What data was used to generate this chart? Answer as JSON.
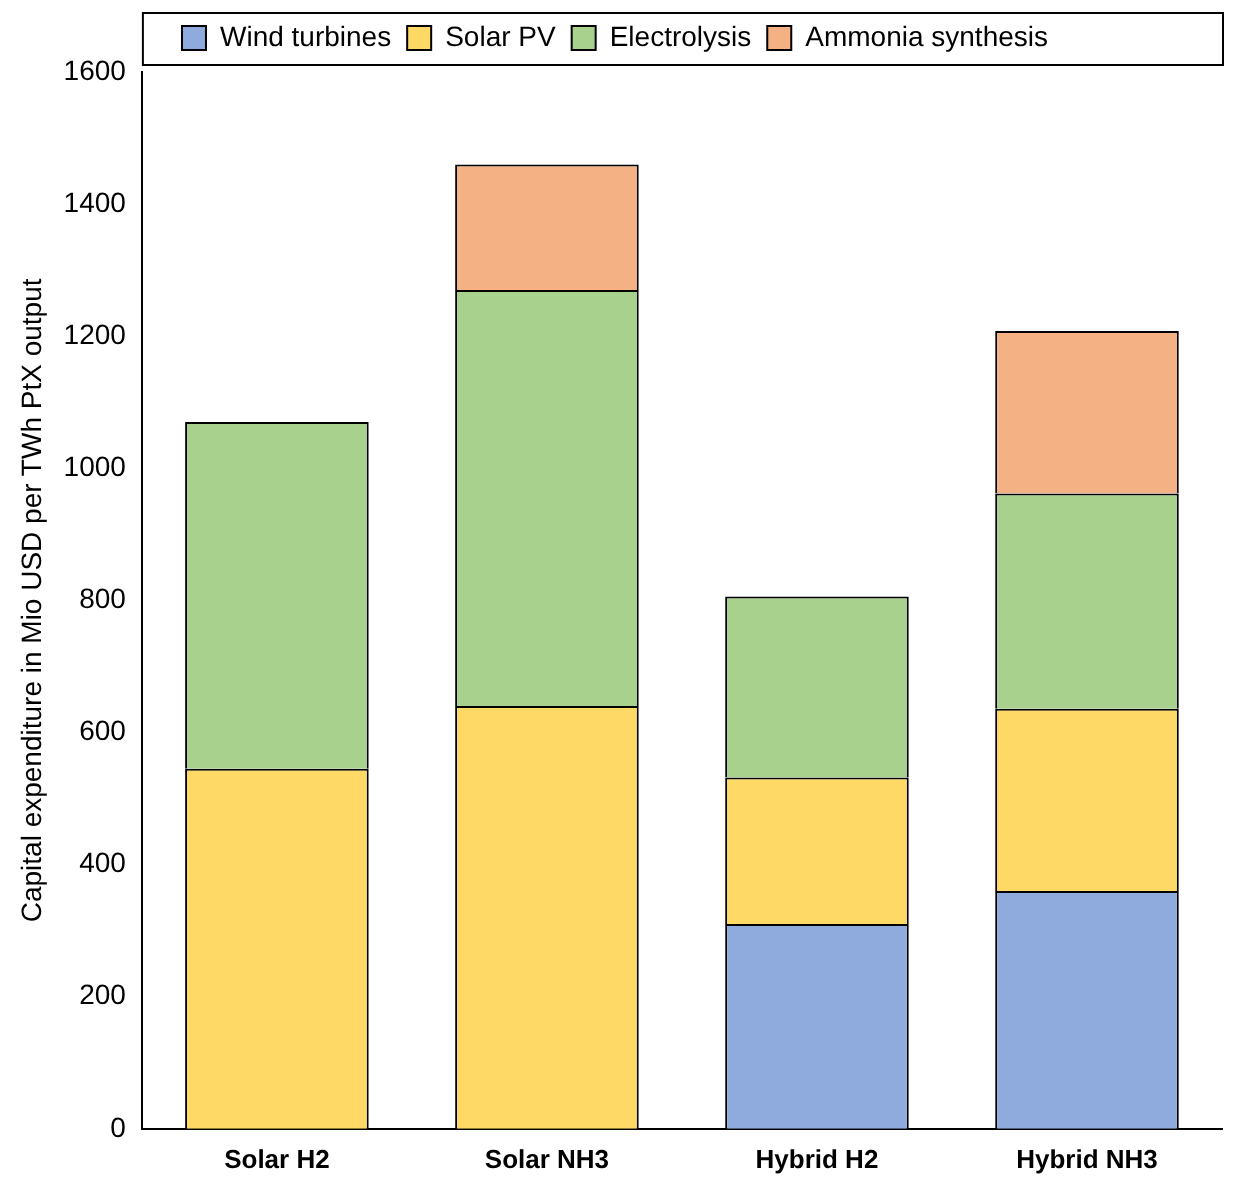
{
  "chart_data": {
    "type": "bar",
    "stacked": true,
    "ylabel": "Capital expenditure in Mio USD per TWh PtX output",
    "categories": [
      "Solar H2",
      "Solar NH3",
      "Hybrid H2",
      "Hybrid NH3"
    ],
    "series": [
      {
        "name": "Wind turbines",
        "color": "#8faadc",
        "values": [
          null,
          null,
          310,
          360
        ]
      },
      {
        "name": "Solar PV",
        "color": "#ffd966",
        "values": [
          545,
          640,
          222,
          276
        ]
      },
      {
        "name": "Electrolysis",
        "color": "#a9d18e",
        "values": [
          525,
          630,
          274,
          326
        ]
      },
      {
        "name": "Ammonia synthesis",
        "color": "#f4b183",
        "values": [
          null,
          190,
          null,
          246
        ]
      }
    ],
    "ylim": [
      0,
      1600
    ],
    "yticks": [
      0,
      200,
      400,
      600,
      800,
      1000,
      1200,
      1400,
      1600
    ],
    "grid": false,
    "legend": "top"
  }
}
